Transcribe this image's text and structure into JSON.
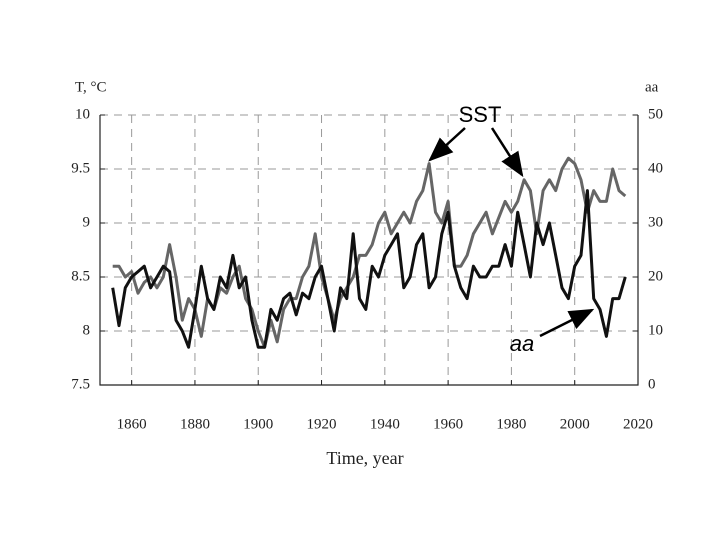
{
  "chart_data": {
    "type": "line",
    "ylabel": "T, °C",
    "y2label": "aa",
    "xlabel": "Time, year",
    "xlim": [
      1850,
      2020
    ],
    "xticks": [
      1860,
      1880,
      1900,
      1920,
      1940,
      1960,
      1980,
      2000,
      2020
    ],
    "ylim": [
      7.5,
      10
    ],
    "yticks": [
      7.5,
      8,
      8.5,
      9,
      9.5,
      10
    ],
    "y2lim": [
      0,
      50
    ],
    "y2ticks": [
      0,
      10,
      20,
      30,
      40,
      50
    ],
    "grid": true,
    "x": [
      1854,
      1856,
      1858,
      1860,
      1862,
      1864,
      1866,
      1868,
      1870,
      1872,
      1874,
      1876,
      1878,
      1880,
      1882,
      1884,
      1886,
      1888,
      1890,
      1892,
      1894,
      1896,
      1898,
      1900,
      1902,
      1904,
      1906,
      1908,
      1910,
      1912,
      1914,
      1916,
      1918,
      1920,
      1922,
      1924,
      1926,
      1928,
      1930,
      1932,
      1934,
      1936,
      1938,
      1940,
      1942,
      1944,
      1946,
      1948,
      1950,
      1952,
      1954,
      1956,
      1958,
      1960,
      1962,
      1964,
      1966,
      1968,
      1970,
      1972,
      1974,
      1976,
      1978,
      1980,
      1982,
      1984,
      1986,
      1988,
      1990,
      1992,
      1994,
      1996,
      1998,
      2000,
      2002,
      2004,
      2006,
      2008,
      2010,
      2012,
      2014,
      2016
    ],
    "series": [
      {
        "name": "SST",
        "color": "#666666",
        "values": [
          8.6,
          8.6,
          8.5,
          8.55,
          8.35,
          8.45,
          8.5,
          8.4,
          8.5,
          8.8,
          8.5,
          8.1,
          8.3,
          8.2,
          7.95,
          8.3,
          8.2,
          8.4,
          8.35,
          8.5,
          8.6,
          8.3,
          8.2,
          8.0,
          7.85,
          8.1,
          7.9,
          8.2,
          8.3,
          8.3,
          8.5,
          8.6,
          8.9,
          8.5,
          8.3,
          8.1,
          8.3,
          8.4,
          8.5,
          8.7,
          8.7,
          8.8,
          9.0,
          9.1,
          8.9,
          9.0,
          9.1,
          9.0,
          9.2,
          9.3,
          9.55,
          9.1,
          9.0,
          9.2,
          8.6,
          8.6,
          8.7,
          8.9,
          9.0,
          9.1,
          8.9,
          9.05,
          9.2,
          9.1,
          9.2,
          9.4,
          9.3,
          8.9,
          9.3,
          9.4,
          9.3,
          9.5,
          9.6,
          9.55,
          9.4,
          9.1,
          9.3,
          9.2,
          9.2,
          9.5,
          9.3,
          9.25
        ]
      },
      {
        "name": "aa",
        "color": "#111111",
        "axis": "y2",
        "values": [
          18,
          11,
          18,
          20,
          21,
          22,
          18,
          20,
          22,
          21,
          12,
          10,
          7,
          14,
          22,
          16,
          14,
          20,
          18,
          24,
          18,
          20,
          12,
          7,
          7,
          14,
          12,
          16,
          17,
          13,
          17,
          16,
          20,
          22,
          16,
          10,
          18,
          16,
          28,
          16,
          14,
          22,
          20,
          24,
          26,
          28,
          18,
          20,
          26,
          28,
          18,
          20,
          28,
          32,
          22,
          18,
          16,
          22,
          20,
          20,
          22,
          22,
          26,
          22,
          32,
          26,
          20,
          30,
          26,
          30,
          24,
          18,
          16,
          22,
          24,
          36,
          16,
          14,
          9,
          16,
          16,
          20
        ]
      }
    ]
  }
}
